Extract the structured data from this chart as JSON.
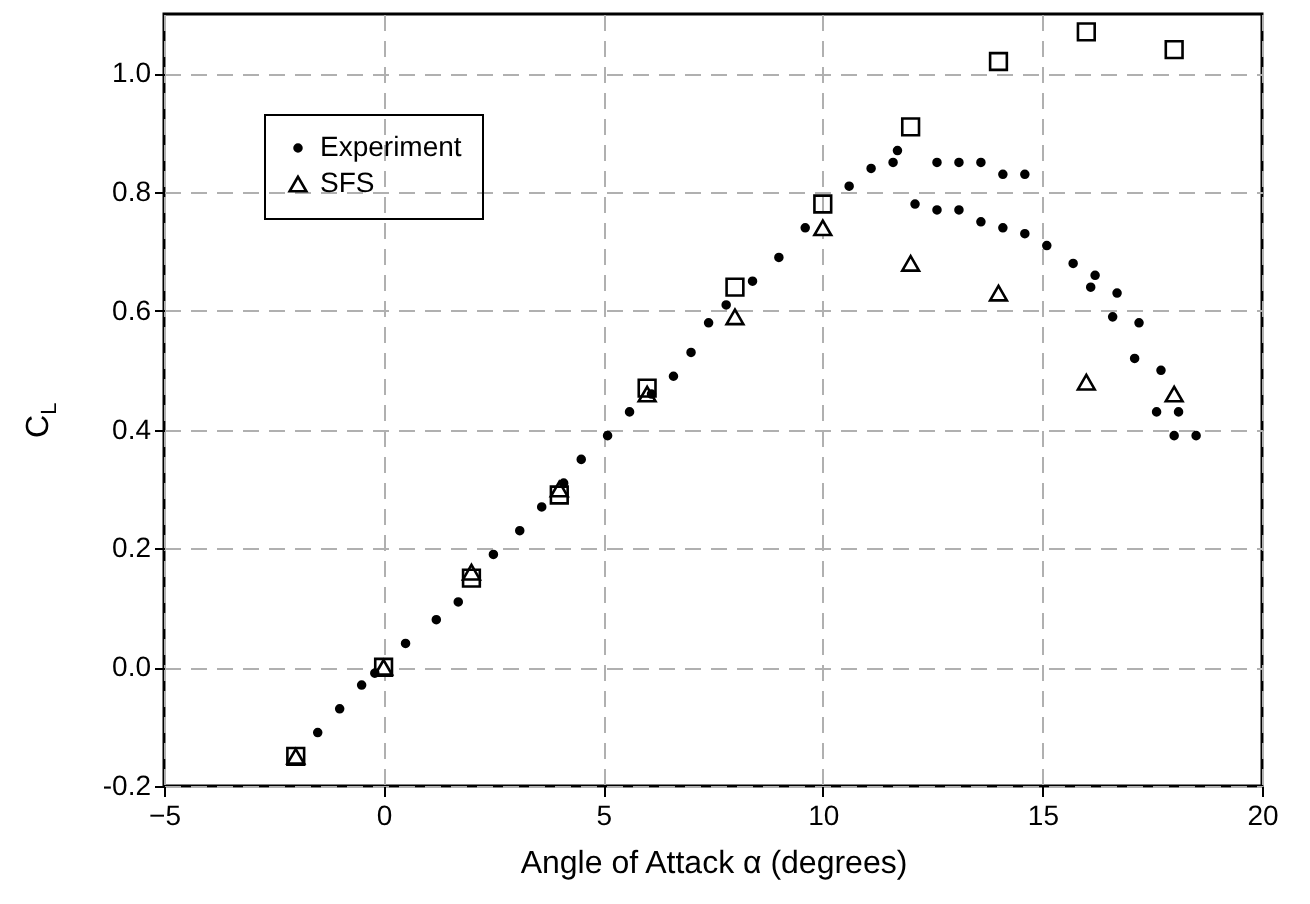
{
  "chart_data": {
    "type": "scatter",
    "xlabel": "Angle of Attack α (degrees)",
    "ylabel": "C$_{L}$",
    "xlim": [
      -5,
      20
    ],
    "xticks": [
      -5,
      0,
      5,
      10,
      15,
      20
    ],
    "ylim": [
      -0.2,
      1.1
    ],
    "yticks": [
      {
        "value": -0.2,
        "label": "-0.2"
      },
      {
        "value": 0,
        "label": "0.0"
      },
      {
        "value": 0.2,
        "label": "0.2"
      },
      {
        "value": 0.4,
        "label": "0.4"
      },
      {
        "value": 0.6,
        "label": "0.6"
      },
      {
        "value": 0.8,
        "label": "0.8"
      },
      {
        "value": 1,
        "label": "1.0"
      }
    ],
    "grid": true,
    "legend": "top left",
    "series": [
      {
        "name": "Experiment",
        "color": "#000000",
        "marker": "circle",
        "x": [
          -1.5,
          -1.0,
          -0.5,
          -0.2,
          0.5,
          1.2,
          1.7,
          2.5,
          3.1,
          3.6,
          4.1,
          4.5,
          5.1,
          5.6,
          6.1,
          6.6,
          7.0,
          7.4,
          7.8,
          8.4,
          9.0,
          9.6,
          10.6,
          11.1,
          11.6,
          11.7,
          12.6,
          13.1,
          13.6,
          14.1,
          14.6,
          12.1,
          12.6,
          13.1,
          13.6,
          14.1,
          14.6,
          15.1,
          15.7,
          16.1,
          16.2,
          16.6,
          16.7,
          17.1,
          17.2,
          17.6,
          17.7,
          18.0,
          18.1,
          18.5
        ],
        "values": [
          -0.11,
          -0.07,
          -0.03,
          -0.01,
          0.04,
          0.08,
          0.11,
          0.19,
          0.23,
          0.27,
          0.31,
          0.35,
          0.39,
          0.43,
          0.46,
          0.49,
          0.53,
          0.58,
          0.61,
          0.65,
          0.69,
          0.74,
          0.81,
          0.84,
          0.85,
          0.87,
          0.85,
          0.85,
          0.85,
          0.83,
          0.83,
          0.78,
          0.77,
          0.77,
          0.75,
          0.74,
          0.73,
          0.71,
          0.68,
          0.64,
          0.66,
          0.59,
          0.63,
          0.52,
          0.58,
          0.43,
          0.5,
          0.39,
          0.43,
          0.39
        ]
      },
      {
        "color": "#000000",
        "marker": "square",
        "x": [
          -2,
          0,
          2,
          4,
          6,
          8,
          10,
          12,
          14,
          16,
          18
        ],
        "values": [
          -0.15,
          0.0,
          0.15,
          0.29,
          0.47,
          0.64,
          0.78,
          0.91,
          1.02,
          1.07,
          1.04
        ]
      },
      {
        "name": "SFS",
        "color": "#000000",
        "marker": "triangle",
        "x": [
          -2,
          0,
          2,
          4,
          6,
          8,
          10,
          12,
          14,
          16,
          18
        ],
        "values": [
          -0.15,
          0.0,
          0.16,
          0.3,
          0.46,
          0.59,
          0.74,
          0.68,
          0.63,
          0.48,
          0.46
        ]
      }
    ]
  }
}
